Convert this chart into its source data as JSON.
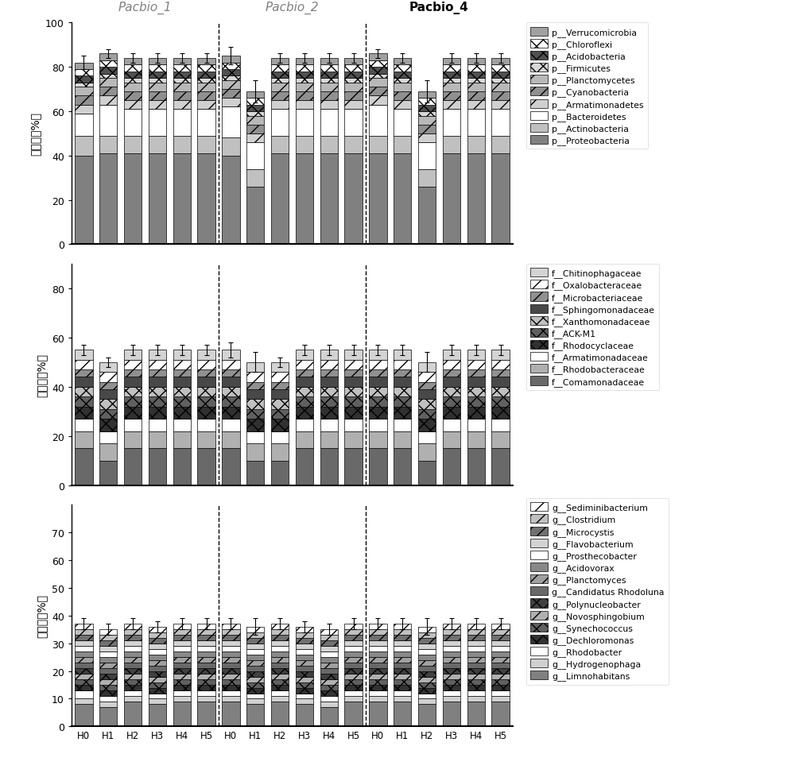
{
  "n_bars": 18,
  "categories": [
    "H0",
    "H1",
    "H2",
    "H3",
    "H4",
    "H5",
    "H0",
    "H1",
    "H2",
    "H3",
    "H4",
    "H5",
    "H0",
    "H1",
    "H2",
    "H3",
    "H4",
    "H5"
  ],
  "phylum_stack": [
    {
      "label": "p__Proteobacteria",
      "color": "#808080",
      "hatch": "",
      "vals": [
        40,
        41,
        41,
        41,
        41,
        41,
        40,
        26,
        41,
        41,
        41,
        41,
        41,
        41,
        26,
        41,
        41,
        41
      ]
    },
    {
      "label": "p__Actinobacteria",
      "color": "#c0c0c0",
      "hatch": "",
      "vals": [
        9,
        8,
        8,
        8,
        8,
        8,
        8,
        8,
        8,
        8,
        8,
        8,
        8,
        8,
        8,
        8,
        8,
        8
      ]
    },
    {
      "label": "p__Bacteroidetes",
      "color": "#ffffff",
      "hatch": "",
      "vals": [
        10,
        14,
        12,
        12,
        12,
        12,
        14,
        12,
        12,
        12,
        12,
        12,
        14,
        12,
        12,
        12,
        12,
        12
      ]
    },
    {
      "label": "p__Armatimonadetes",
      "color": "#d0d0d0",
      "hatch": "/",
      "vals": [
        4,
        4,
        4,
        4,
        4,
        4,
        4,
        4,
        4,
        4,
        4,
        4,
        4,
        4,
        4,
        4,
        4,
        4
      ]
    },
    {
      "label": "p__Cyanobacteria",
      "color": "#909090",
      "hatch": "//",
      "vals": [
        4,
        4,
        4,
        4,
        4,
        4,
        4,
        4,
        4,
        4,
        4,
        4,
        4,
        4,
        4,
        4,
        4,
        4
      ]
    },
    {
      "label": "p__Planctomycetes",
      "color": "#b8b8b8",
      "hatch": "/",
      "vals": [
        4,
        4,
        4,
        4,
        4,
        4,
        4,
        4,
        4,
        4,
        4,
        4,
        4,
        4,
        4,
        4,
        4,
        4
      ]
    },
    {
      "label": "p__Firmicutes",
      "color": "#d8d8d8",
      "hatch": "xx",
      "vals": [
        2,
        2,
        2,
        2,
        2,
        2,
        2,
        2,
        2,
        2,
        2,
        2,
        2,
        2,
        2,
        2,
        2,
        2
      ]
    },
    {
      "label": "p__Acidobacteria",
      "color": "#505050",
      "hatch": "xx",
      "vals": [
        3,
        3,
        3,
        3,
        3,
        3,
        3,
        3,
        3,
        3,
        3,
        3,
        3,
        3,
        3,
        3,
        3,
        3
      ]
    },
    {
      "label": "p__Chloroflexi",
      "color": "#ffffff",
      "hatch": "xx",
      "vals": [
        3,
        3,
        3,
        3,
        3,
        3,
        3,
        3,
        3,
        3,
        3,
        3,
        3,
        3,
        3,
        3,
        3,
        3
      ]
    },
    {
      "label": "p__Verrucomicrobia",
      "color": "#a0a0a0",
      "hatch": "",
      "vals": [
        3,
        3,
        3,
        3,
        3,
        3,
        3,
        3,
        3,
        3,
        3,
        3,
        3,
        3,
        3,
        3,
        3,
        3
      ]
    }
  ],
  "phylum_errors": [
    3,
    2,
    2,
    2,
    2,
    2,
    4,
    5,
    2,
    2,
    2,
    2,
    2,
    2,
    5,
    2,
    2,
    2
  ],
  "phylum_ylim": [
    0,
    100
  ],
  "phylum_yticks": [
    0,
    20,
    40,
    60,
    80,
    100
  ],
  "family_stack": [
    {
      "label": "f__Comamonadaceae",
      "color": "#696969",
      "hatch": "",
      "vals": [
        15,
        10,
        15,
        15,
        15,
        15,
        15,
        10,
        10,
        15,
        15,
        15,
        15,
        15,
        10,
        15,
        15,
        15
      ]
    },
    {
      "label": "f__Rhodobacteraceae",
      "color": "#b0b0b0",
      "hatch": "",
      "vals": [
        7,
        7,
        7,
        7,
        7,
        7,
        7,
        7,
        7,
        7,
        7,
        7,
        7,
        7,
        7,
        7,
        7,
        7
      ]
    },
    {
      "label": "f__Armatimonadaceae",
      "color": "#ffffff",
      "hatch": "",
      "vals": [
        5,
        5,
        5,
        5,
        5,
        5,
        5,
        5,
        5,
        5,
        5,
        5,
        5,
        5,
        5,
        5,
        5,
        5
      ]
    },
    {
      "label": "f__Rhodocyclaceae",
      "color": "#303030",
      "hatch": "xx",
      "vals": [
        5,
        5,
        5,
        5,
        5,
        5,
        5,
        5,
        5,
        5,
        5,
        5,
        5,
        5,
        5,
        5,
        5,
        5
      ]
    },
    {
      "label": "f__ACK-M1",
      "color": "#606060",
      "hatch": "xx",
      "vals": [
        4,
        4,
        4,
        4,
        4,
        4,
        4,
        4,
        4,
        4,
        4,
        4,
        4,
        4,
        4,
        4,
        4,
        4
      ]
    },
    {
      "label": "f__Xanthomonadaceae",
      "color": "#c0c0c0",
      "hatch": "xx",
      "vals": [
        4,
        4,
        4,
        4,
        4,
        4,
        4,
        4,
        4,
        4,
        4,
        4,
        4,
        4,
        4,
        4,
        4,
        4
      ]
    },
    {
      "label": "f__Sphingomonadaceae",
      "color": "#484848",
      "hatch": "",
      "vals": [
        4,
        4,
        4,
        4,
        4,
        4,
        4,
        4,
        4,
        4,
        4,
        4,
        4,
        4,
        4,
        4,
        4,
        4
      ]
    },
    {
      "label": "f__Microbacteriaceae",
      "color": "#909090",
      "hatch": "//",
      "vals": [
        3,
        3,
        3,
        3,
        3,
        3,
        3,
        3,
        3,
        3,
        3,
        3,
        3,
        3,
        3,
        3,
        3,
        3
      ]
    },
    {
      "label": "f__Oxalobacteraceae",
      "color": "#ffffff",
      "hatch": "//",
      "vals": [
        4,
        4,
        4,
        4,
        4,
        4,
        4,
        4,
        4,
        4,
        4,
        4,
        4,
        4,
        4,
        4,
        4,
        4
      ]
    },
    {
      "label": "f__Chitinophagaceae",
      "color": "#d3d3d3",
      "hatch": "",
      "vals": [
        4,
        4,
        4,
        4,
        4,
        4,
        4,
        4,
        4,
        4,
        4,
        4,
        4,
        4,
        4,
        4,
        4,
        4
      ]
    }
  ],
  "family_errors": [
    2,
    2,
    2,
    2,
    2,
    2,
    3,
    4,
    2,
    2,
    2,
    2,
    2,
    2,
    4,
    2,
    2,
    2
  ],
  "family_ylim": [
    0,
    90
  ],
  "family_yticks": [
    0,
    20,
    40,
    60,
    80
  ],
  "genus_stack": [
    {
      "label": "g__Limnohabitans",
      "color": "#808080",
      "hatch": "",
      "vals": [
        8,
        7,
        9,
        8,
        9,
        9,
        9,
        8,
        9,
        8,
        7,
        9,
        9,
        9,
        8,
        9,
        9,
        9
      ]
    },
    {
      "label": "g__Hydrogenophaga",
      "color": "#d0d0d0",
      "hatch": "",
      "vals": [
        2,
        2,
        2,
        2,
        2,
        2,
        2,
        2,
        2,
        2,
        2,
        2,
        2,
        2,
        2,
        2,
        2,
        2
      ]
    },
    {
      "label": "g__Rhodobacter",
      "color": "#ffffff",
      "hatch": "",
      "vals": [
        3,
        2,
        2,
        2,
        2,
        2,
        2,
        2,
        2,
        2,
        2,
        2,
        2,
        2,
        2,
        2,
        2,
        2
      ]
    },
    {
      "label": "g__Dechloromonas",
      "color": "#333333",
      "hatch": "xx",
      "vals": [
        2,
        2,
        2,
        2,
        2,
        2,
        2,
        2,
        2,
        2,
        2,
        2,
        2,
        2,
        2,
        2,
        2,
        2
      ]
    },
    {
      "label": "g__Synechococcus",
      "color": "#606060",
      "hatch": "xx",
      "vals": [
        2,
        2,
        2,
        2,
        2,
        2,
        2,
        2,
        2,
        2,
        2,
        2,
        2,
        2,
        2,
        2,
        2,
        2
      ]
    },
    {
      "label": "g__Novosphingobium",
      "color": "#b0b0b0",
      "hatch": "//",
      "vals": [
        2,
        2,
        2,
        2,
        2,
        2,
        2,
        2,
        2,
        2,
        2,
        2,
        2,
        2,
        2,
        2,
        2,
        2
      ]
    },
    {
      "label": "g__Polynucleobacter",
      "color": "#404040",
      "hatch": "xx",
      "vals": [
        2,
        2,
        2,
        2,
        2,
        2,
        2,
        2,
        2,
        2,
        2,
        2,
        2,
        2,
        2,
        2,
        2,
        2
      ]
    },
    {
      "label": "g__Candidatus Rhodoluna",
      "color": "#696969",
      "hatch": "",
      "vals": [
        2,
        2,
        2,
        2,
        2,
        2,
        2,
        2,
        2,
        2,
        2,
        2,
        2,
        2,
        2,
        2,
        2,
        2
      ]
    },
    {
      "label": "g__Planctomyces",
      "color": "#a0a0a0",
      "hatch": "//",
      "vals": [
        2,
        2,
        2,
        2,
        2,
        2,
        2,
        2,
        2,
        2,
        2,
        2,
        2,
        2,
        2,
        2,
        2,
        2
      ]
    },
    {
      "label": "g__Acidovorax",
      "color": "#888888",
      "hatch": "",
      "vals": [
        2,
        2,
        2,
        2,
        2,
        2,
        2,
        2,
        2,
        2,
        2,
        2,
        2,
        2,
        2,
        2,
        2,
        2
      ]
    },
    {
      "label": "g__Prosthecobacter",
      "color": "#ffffff",
      "hatch": "",
      "vals": [
        2,
        2,
        2,
        2,
        2,
        2,
        2,
        2,
        2,
        2,
        2,
        2,
        2,
        2,
        2,
        2,
        2,
        2
      ]
    },
    {
      "label": "g__Flavobacterium",
      "color": "#d3d3d3",
      "hatch": "",
      "vals": [
        2,
        2,
        2,
        2,
        2,
        2,
        2,
        2,
        2,
        2,
        2,
        2,
        2,
        2,
        2,
        2,
        2,
        2
      ]
    },
    {
      "label": "g__Microcystis",
      "color": "#707070",
      "hatch": "//",
      "vals": [
        2,
        2,
        2,
        2,
        2,
        2,
        2,
        2,
        2,
        2,
        2,
        2,
        2,
        2,
        2,
        2,
        2,
        2
      ]
    },
    {
      "label": "g__Clostridium",
      "color": "#c0c0c0",
      "hatch": "//",
      "vals": [
        2,
        2,
        2,
        2,
        2,
        2,
        2,
        2,
        2,
        2,
        2,
        2,
        2,
        2,
        2,
        2,
        2,
        2
      ]
    },
    {
      "label": "g__Sediminibacterium",
      "color": "#ffffff",
      "hatch": "//",
      "vals": [
        2,
        2,
        2,
        2,
        2,
        2,
        2,
        2,
        2,
        2,
        2,
        2,
        2,
        2,
        2,
        2,
        2,
        2
      ]
    }
  ],
  "genus_errors": [
    2,
    2,
    2,
    2,
    2,
    2,
    2,
    3,
    2,
    2,
    2,
    2,
    2,
    2,
    3,
    2,
    2,
    2
  ],
  "genus_ylim": [
    0,
    80
  ],
  "genus_yticks": [
    0,
    10,
    20,
    30,
    40,
    50,
    60,
    70
  ],
  "ylabel1": "门水平（%）",
  "ylabel2": "科水平（%）",
  "ylabel3": "属水平（%）",
  "dividers": [
    5.5,
    11.5
  ],
  "group_centers": [
    2.5,
    8.5,
    14.5
  ],
  "group_labels": [
    "Pacbio_1",
    "Pacbio_2",
    "Pacbio_4"
  ],
  "group_bold": [
    false,
    false,
    true
  ],
  "group_color": [
    "#808080",
    "#808080",
    "#000000"
  ],
  "tick_labels": [
    "H0",
    "H1",
    "H2",
    "H3",
    "H4",
    "H5",
    "H0",
    "H1",
    "H2",
    "H3",
    "H4",
    "H5",
    "H0",
    "H1",
    "H2",
    "H3",
    "H4",
    "H5"
  ]
}
